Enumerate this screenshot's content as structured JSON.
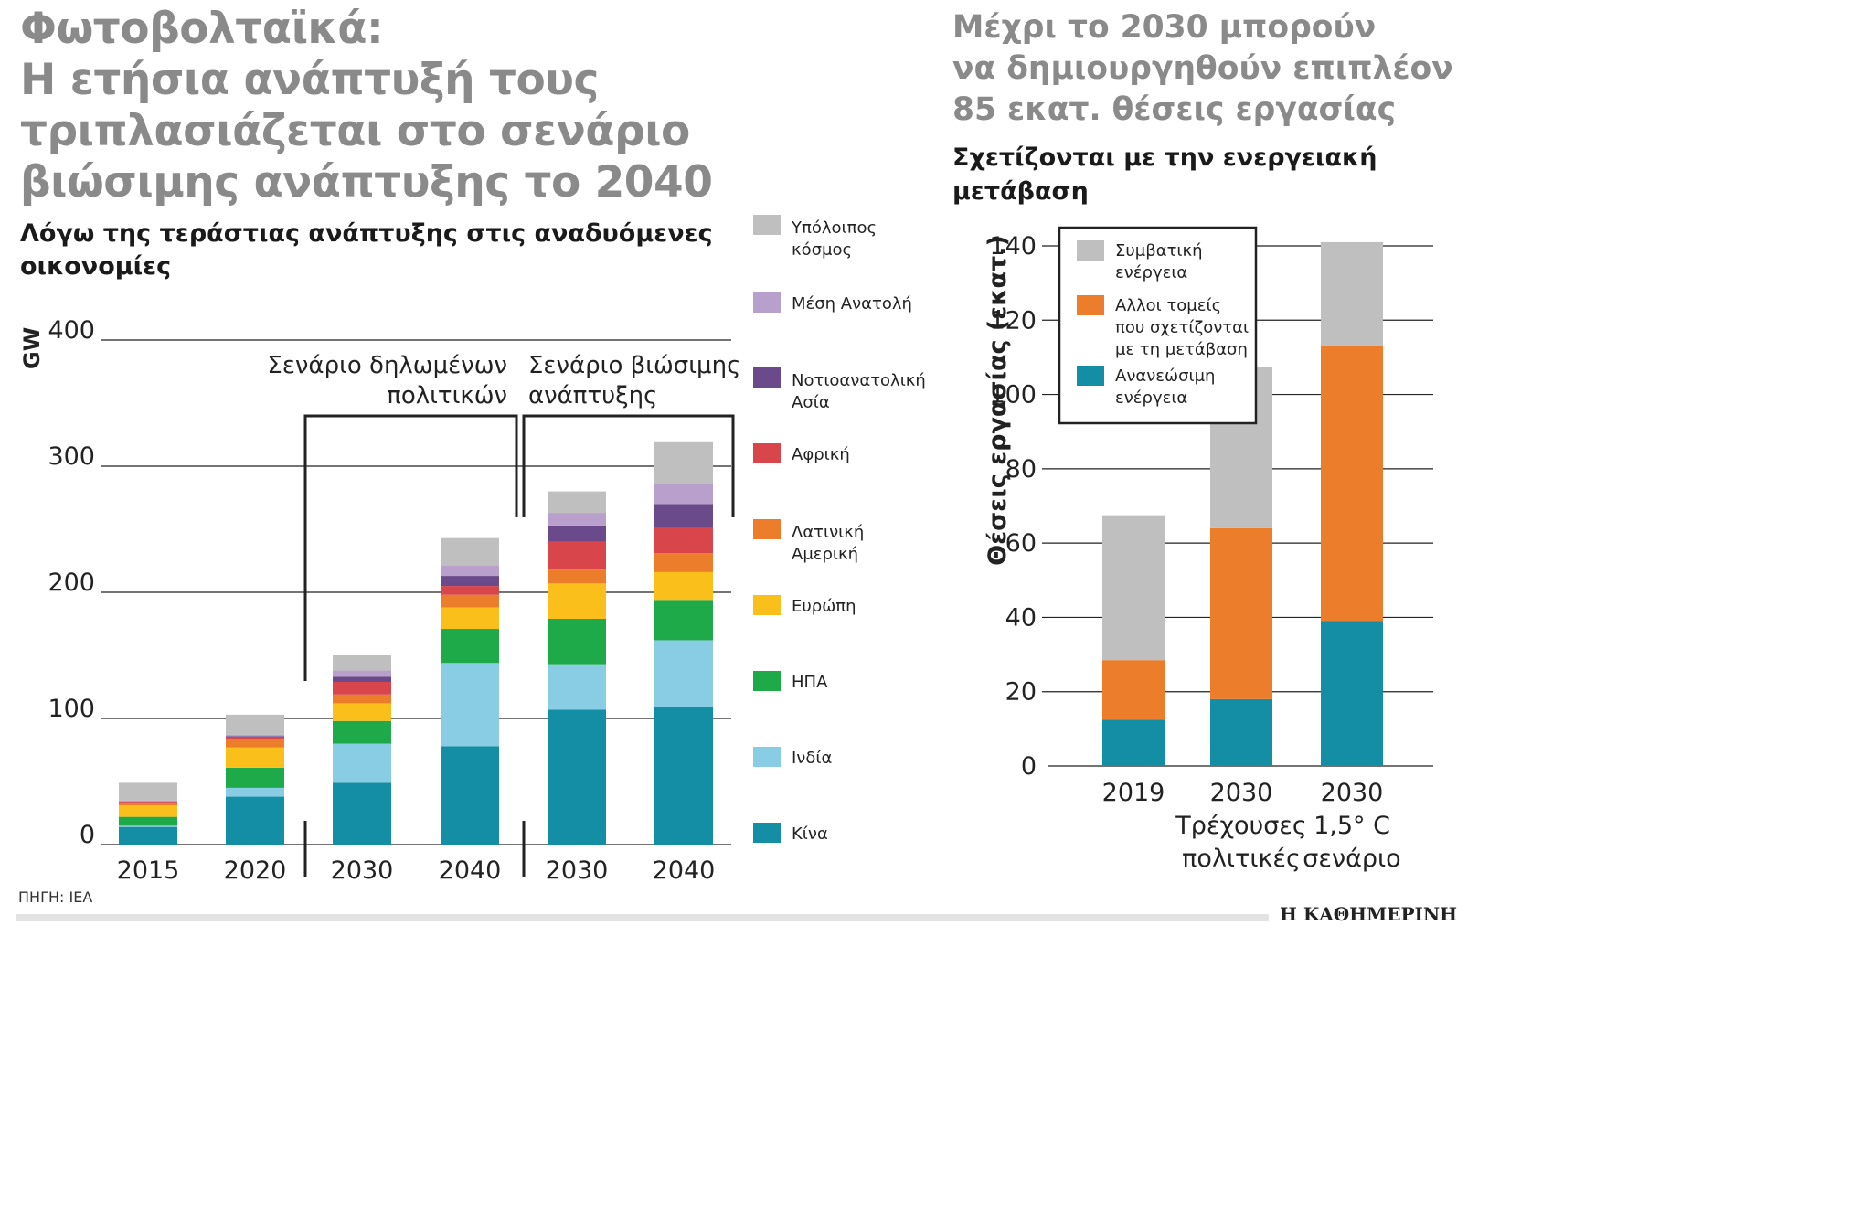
{
  "headline": {
    "lines": [
      "Φωτοβολταϊκά:",
      "Η ετήσια ανάπτυξή τους",
      "τριπλασιάζεται στο σενάριο",
      "βιώσιμης ανάπτυξης το 2040"
    ]
  },
  "subtitle": {
    "lines": [
      "Λόγω της τεράστιας ανάπτυξης στις αναδυόμενες",
      "οικονομίες"
    ]
  },
  "right_headline": {
    "lines": [
      "Μέχρι το 2030 μπορούν",
      "να δημιουργηθούν επιπλέον",
      "85 εκατ. θέσεις εργασίας"
    ]
  },
  "right_subtitle": {
    "lines": [
      "Σχετίζονται με την ενεργειακή",
      "μετάβαση"
    ]
  },
  "source": "ΠΗΓΗ: IEA",
  "brand": "Η ΚΑΘΗΜΕΡΙΝΗ",
  "colors": {
    "gray": "#bfbfbf",
    "lavender": "#b9a0cc",
    "purple": "#6a4a8a",
    "red": "#d8454a",
    "orange": "#ec7e2b",
    "yellow": "#fbbf1c",
    "green": "#1faa4a",
    "lightblue": "#88cde3",
    "teal": "#138ea5",
    "text": "#222222",
    "grid": "#222222"
  },
  "chart_data": [
    {
      "type": "bar",
      "stacked": true,
      "title": "Λόγω της τεράστιας ανάπτυξης στις αναδυόμενες οικονομίες",
      "ylabel": "GW",
      "ylim": [
        0,
        400
      ],
      "yticks": [
        0,
        100,
        200,
        300,
        400
      ],
      "categories": [
        "2015",
        "2020",
        "2030",
        "2040",
        "2030",
        "2040"
      ],
      "groups": [
        {
          "label_lines": [
            "Σενάριο δηλωμένων",
            "πολιτικών"
          ],
          "categories": [
            2,
            3
          ]
        },
        {
          "label_lines": [
            "Σενάριο βιώσιμης",
            "ανάπτυξης"
          ],
          "categories": [
            4,
            5
          ]
        }
      ],
      "series": [
        {
          "name": "Κίνα",
          "label_lines": [
            "Κίνα"
          ],
          "color": "#138ea5",
          "values": [
            14,
            38,
            49,
            78,
            107,
            109
          ]
        },
        {
          "name": "Ινδία",
          "label_lines": [
            "Ινδία"
          ],
          "color": "#88cde3",
          "values": [
            1,
            7,
            31,
            66,
            36,
            53
          ]
        },
        {
          "name": "ΗΠΑ",
          "label_lines": [
            "ΗΠΑ"
          ],
          "color": "#1faa4a",
          "values": [
            7,
            16,
            18,
            27,
            36,
            32
          ]
        },
        {
          "name": "Ευρώπη",
          "label_lines": [
            "Ευρώπη"
          ],
          "color": "#fbbf1c",
          "values": [
            9,
            16,
            14,
            17,
            28,
            22
          ]
        },
        {
          "name": "Λατινική Αμερική",
          "label_lines": [
            "Λατινική",
            "Αμερική"
          ],
          "color": "#ec7e2b",
          "values": [
            2,
            7,
            7,
            10,
            11,
            15
          ]
        },
        {
          "name": "Αφρική",
          "label_lines": [
            "Αφρική"
          ],
          "color": "#d8454a",
          "values": [
            1,
            1,
            10,
            7,
            22,
            20
          ]
        },
        {
          "name": "Νοτιοανατολική Ασία",
          "label_lines": [
            "Νοτιοανατολική",
            "Ασία"
          ],
          "color": "#6a4a8a",
          "values": [
            0,
            1,
            4,
            8,
            13,
            19
          ]
        },
        {
          "name": "Μέση Ανατολή",
          "label_lines": [
            "Μέση Ανατολή"
          ],
          "color": "#b9a0cc",
          "values": [
            1,
            1,
            5,
            8,
            10,
            16
          ]
        },
        {
          "name": "Υπόλοιπος κόσμος",
          "label_lines": [
            "Υπόλοιπος",
            "κόσμος"
          ],
          "color": "#bfbfbf",
          "values": [
            14,
            16,
            12,
            22,
            17,
            33
          ]
        }
      ]
    },
    {
      "type": "bar",
      "stacked": true,
      "title": "Σχετίζονται με την ενεργειακή μετάβαση",
      "ylabel": "Θέσεις εργασίας (εκατ.)",
      "ylim": [
        0,
        140
      ],
      "yticks": [
        0,
        20,
        40,
        60,
        80,
        100,
        120,
        140
      ],
      "categories": [
        [
          "2019"
        ],
        [
          "2030",
          "Τρέχουσες",
          "πολιτικές"
        ],
        [
          "2030",
          "1,5° C",
          "σενάριο"
        ]
      ],
      "legend": "top-left",
      "series": [
        {
          "name": "Ανανεώσιμη ενέργεια",
          "label_lines": [
            "Ανανεώσιμη",
            "ενέργεια"
          ],
          "color": "#138ea5",
          "values": [
            12.5,
            18,
            39
          ]
        },
        {
          "name": "Αλλοι τομείς που σχετίζονται με τη μετάβαση",
          "label_lines": [
            "Αλλοι τομείς",
            "που σχετίζονται",
            "με τη μετάβαση"
          ],
          "color": "#ec7e2b",
          "values": [
            16,
            46,
            74
          ]
        },
        {
          "name": "Συμβατική ενέργεια",
          "label_lines": [
            "Συμβατική",
            "ενέργεια"
          ],
          "color": "#bfbfbf",
          "values": [
            39,
            43.5,
            28
          ]
        }
      ]
    }
  ]
}
